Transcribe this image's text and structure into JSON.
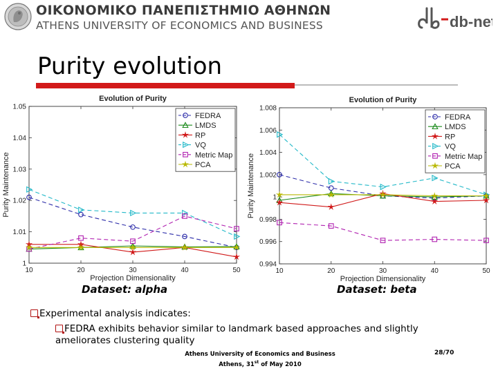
{
  "header": {
    "university_greek": "ΟΙΚΟΝΟΜΙΚΟ ΠΑΝΕΠΙΣΤΗΜΙΟ ΑΘΗΝΩΝ",
    "university_english": "ATHENS UNIVERSITY OF ECONOMICS AND BUSINESS",
    "logo_right": "db-net",
    "seal_icon": "university-seal-icon"
  },
  "slide": {
    "title": "Purity evolution",
    "accent_color": "#d21a1a"
  },
  "chart_data": [
    {
      "type": "line",
      "title": "Evolution of Purity",
      "xlabel": "Projection Dimensionality",
      "ylabel": "Purity Maintenance",
      "caption": "Dataset: alpha",
      "x": [
        10,
        20,
        30,
        40,
        50
      ],
      "xlim": [
        10,
        50
      ],
      "ylim": [
        1.0,
        1.05
      ],
      "xticks": [
        "10",
        "20",
        "30",
        "40",
        "50"
      ],
      "yticks": [
        "1",
        "1.01",
        "1.02",
        "1.03",
        "1.04",
        "1.05"
      ],
      "grid": false,
      "legend": "top-right",
      "series": [
        {
          "name": "FEDRA",
          "values": [
            1.021,
            1.0155,
            1.0115,
            1.0085,
            1.005
          ],
          "color": "#2a2aa8",
          "marker": "circle",
          "dash": "6,4"
        },
        {
          "name": "LMDS",
          "values": [
            1.0045,
            1.005,
            1.0055,
            1.0052,
            1.0053
          ],
          "color": "#1a8a1a",
          "marker": "triangle-up",
          "dash": ""
        },
        {
          "name": "RP",
          "values": [
            1.006,
            1.006,
            1.0035,
            1.005,
            1.002
          ],
          "color": "#d01818",
          "marker": "star",
          "dash": ""
        },
        {
          "name": "VQ",
          "values": [
            1.0235,
            1.017,
            1.016,
            1.016,
            1.0085
          ],
          "color": "#20b8c8",
          "marker": "triangle-right",
          "dash": "6,4"
        },
        {
          "name": "Metric Map",
          "values": [
            1.0045,
            1.008,
            1.007,
            1.015,
            1.011
          ],
          "color": "#b020b0",
          "marker": "square",
          "dash": "6,4"
        },
        {
          "name": "PCA",
          "values": [
            1.005,
            1.005,
            1.005,
            1.005,
            1.005
          ],
          "color": "#b8b800",
          "marker": "star",
          "dash": ""
        }
      ]
    },
    {
      "type": "line",
      "title": "Evolution of Purity",
      "xlabel": "Projection Dimensionality",
      "ylabel": "Purity Maintenance",
      "caption": "Dataset: beta",
      "x": [
        10,
        20,
        30,
        40,
        50
      ],
      "xlim": [
        10,
        50
      ],
      "ylim": [
        0.994,
        1.008
      ],
      "xticks": [
        "10",
        "20",
        "30",
        "40",
        "50"
      ],
      "yticks": [
        "0.994",
        "0.996",
        "0.998",
        "1",
        "1.002",
        "1.004",
        "1.006",
        "1.008"
      ],
      "grid": false,
      "legend": "top-right",
      "series": [
        {
          "name": "FEDRA",
          "values": [
            1.002,
            1.0008,
            1.0001,
            0.9999,
            1.0001
          ],
          "color": "#2a2aa8",
          "marker": "circle",
          "dash": "6,4"
        },
        {
          "name": "LMDS",
          "values": [
            0.9997,
            1.0003,
            1.0001,
            1.0,
            1.0001
          ],
          "color": "#1a8a1a",
          "marker": "triangle-up",
          "dash": ""
        },
        {
          "name": "RP",
          "values": [
            0.9995,
            0.9991,
            1.0003,
            0.9996,
            0.9997
          ],
          "color": "#d01818",
          "marker": "star",
          "dash": ""
        },
        {
          "name": "VQ",
          "values": [
            1.0056,
            1.0014,
            1.0009,
            1.0017,
            1.0002
          ],
          "color": "#20b8c8",
          "marker": "triangle-right",
          "dash": "6,4"
        },
        {
          "name": "Metric Map",
          "values": [
            0.9977,
            0.9974,
            0.9961,
            0.9962,
            0.9961
          ],
          "color": "#b020b0",
          "marker": "square",
          "dash": "6,4"
        },
        {
          "name": "PCA",
          "values": [
            1.0002,
            1.0002,
            1.0002,
            1.0001,
            1.0001
          ],
          "color": "#b8b800",
          "marker": "star",
          "dash": ""
        }
      ]
    }
  ],
  "bullets": {
    "level1": "Experimental analysis indicates:",
    "level2": "FEDRA exhibits behavior similar to landmark based approaches and slightly ameliorates clustering quality",
    "bullet_icon": "q-bullet-icon"
  },
  "footer": {
    "line1": "Athens University of Economics and Business",
    "line2_pre": "Athens, 31",
    "line2_sup": "st",
    "line2_post": " of May 2010",
    "page": "28/70"
  }
}
